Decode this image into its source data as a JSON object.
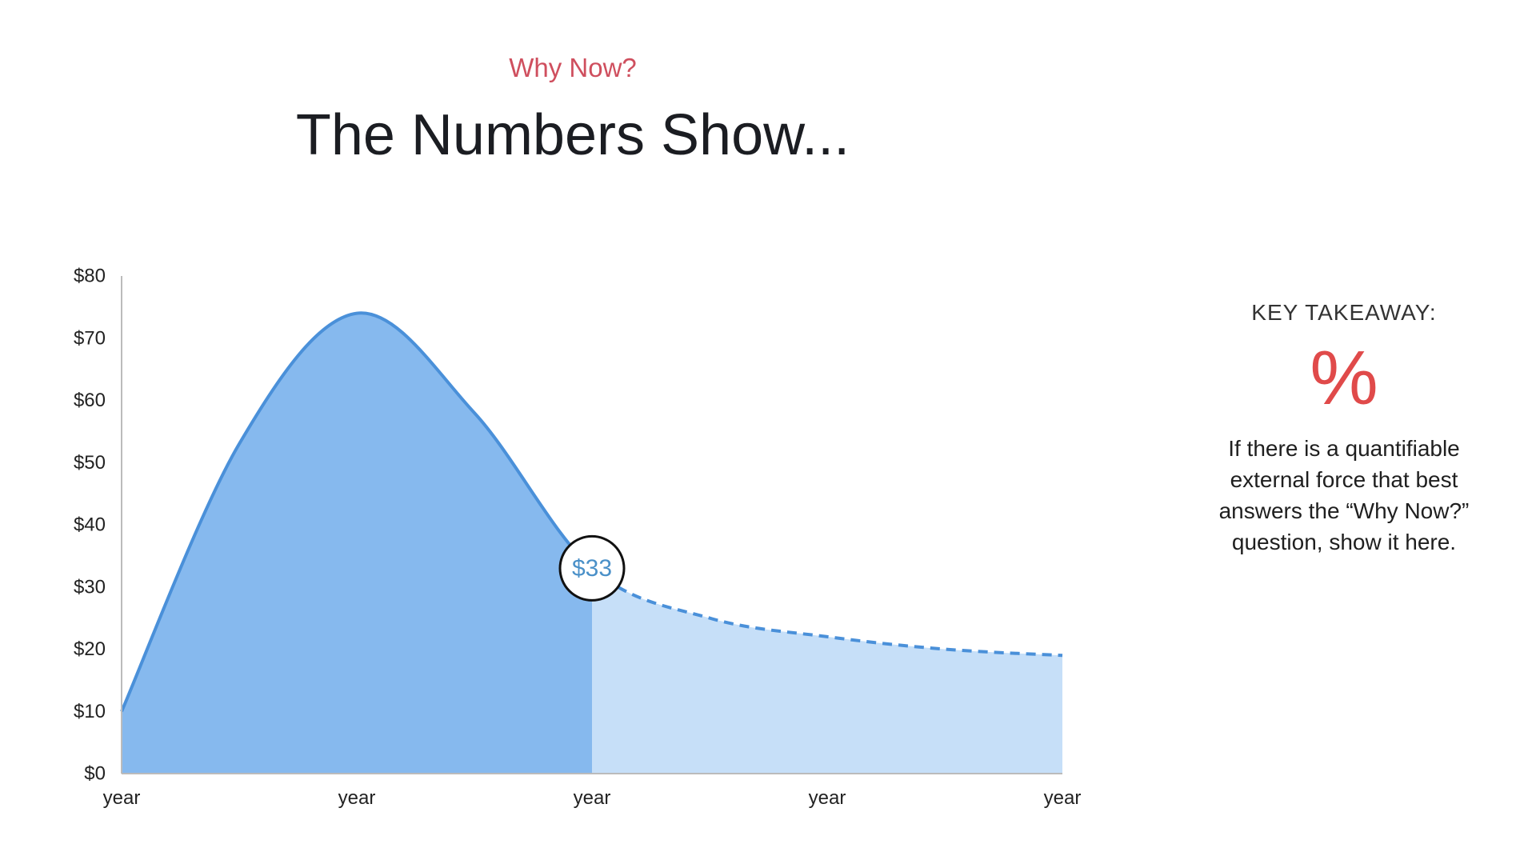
{
  "header": {
    "eyebrow": "Why Now?",
    "title": "The Numbers Show..."
  },
  "chart_data": {
    "type": "area",
    "x": [
      0,
      0.5,
      1,
      1.5,
      2,
      2.5,
      3,
      3.5,
      4
    ],
    "x_tick_labels": [
      "year",
      "year",
      "year",
      "year",
      "year"
    ],
    "y_tick_labels": [
      "$0",
      "$10",
      "$20",
      "$30",
      "$40",
      "$50",
      "$60",
      "$70",
      "$80"
    ],
    "ylim": [
      0,
      80
    ],
    "series": [
      {
        "values": [
          10,
          53,
          74,
          58,
          33,
          25,
          22,
          20,
          19
        ]
      }
    ],
    "solid_until_x": 2,
    "highlight": {
      "x": 2,
      "value": 33,
      "label": "$33"
    },
    "colors": {
      "line": "#4a90d9",
      "area_past": "#86b9ee",
      "area_future": "#c6dff8",
      "axis": "#bbbbbb"
    },
    "grid": false
  },
  "takeaway": {
    "heading": "KEY TAKEAWAY:",
    "symbol": "%",
    "body": "If there is a quantifiable external force that best answers the “Why Now?” question, show it here."
  }
}
